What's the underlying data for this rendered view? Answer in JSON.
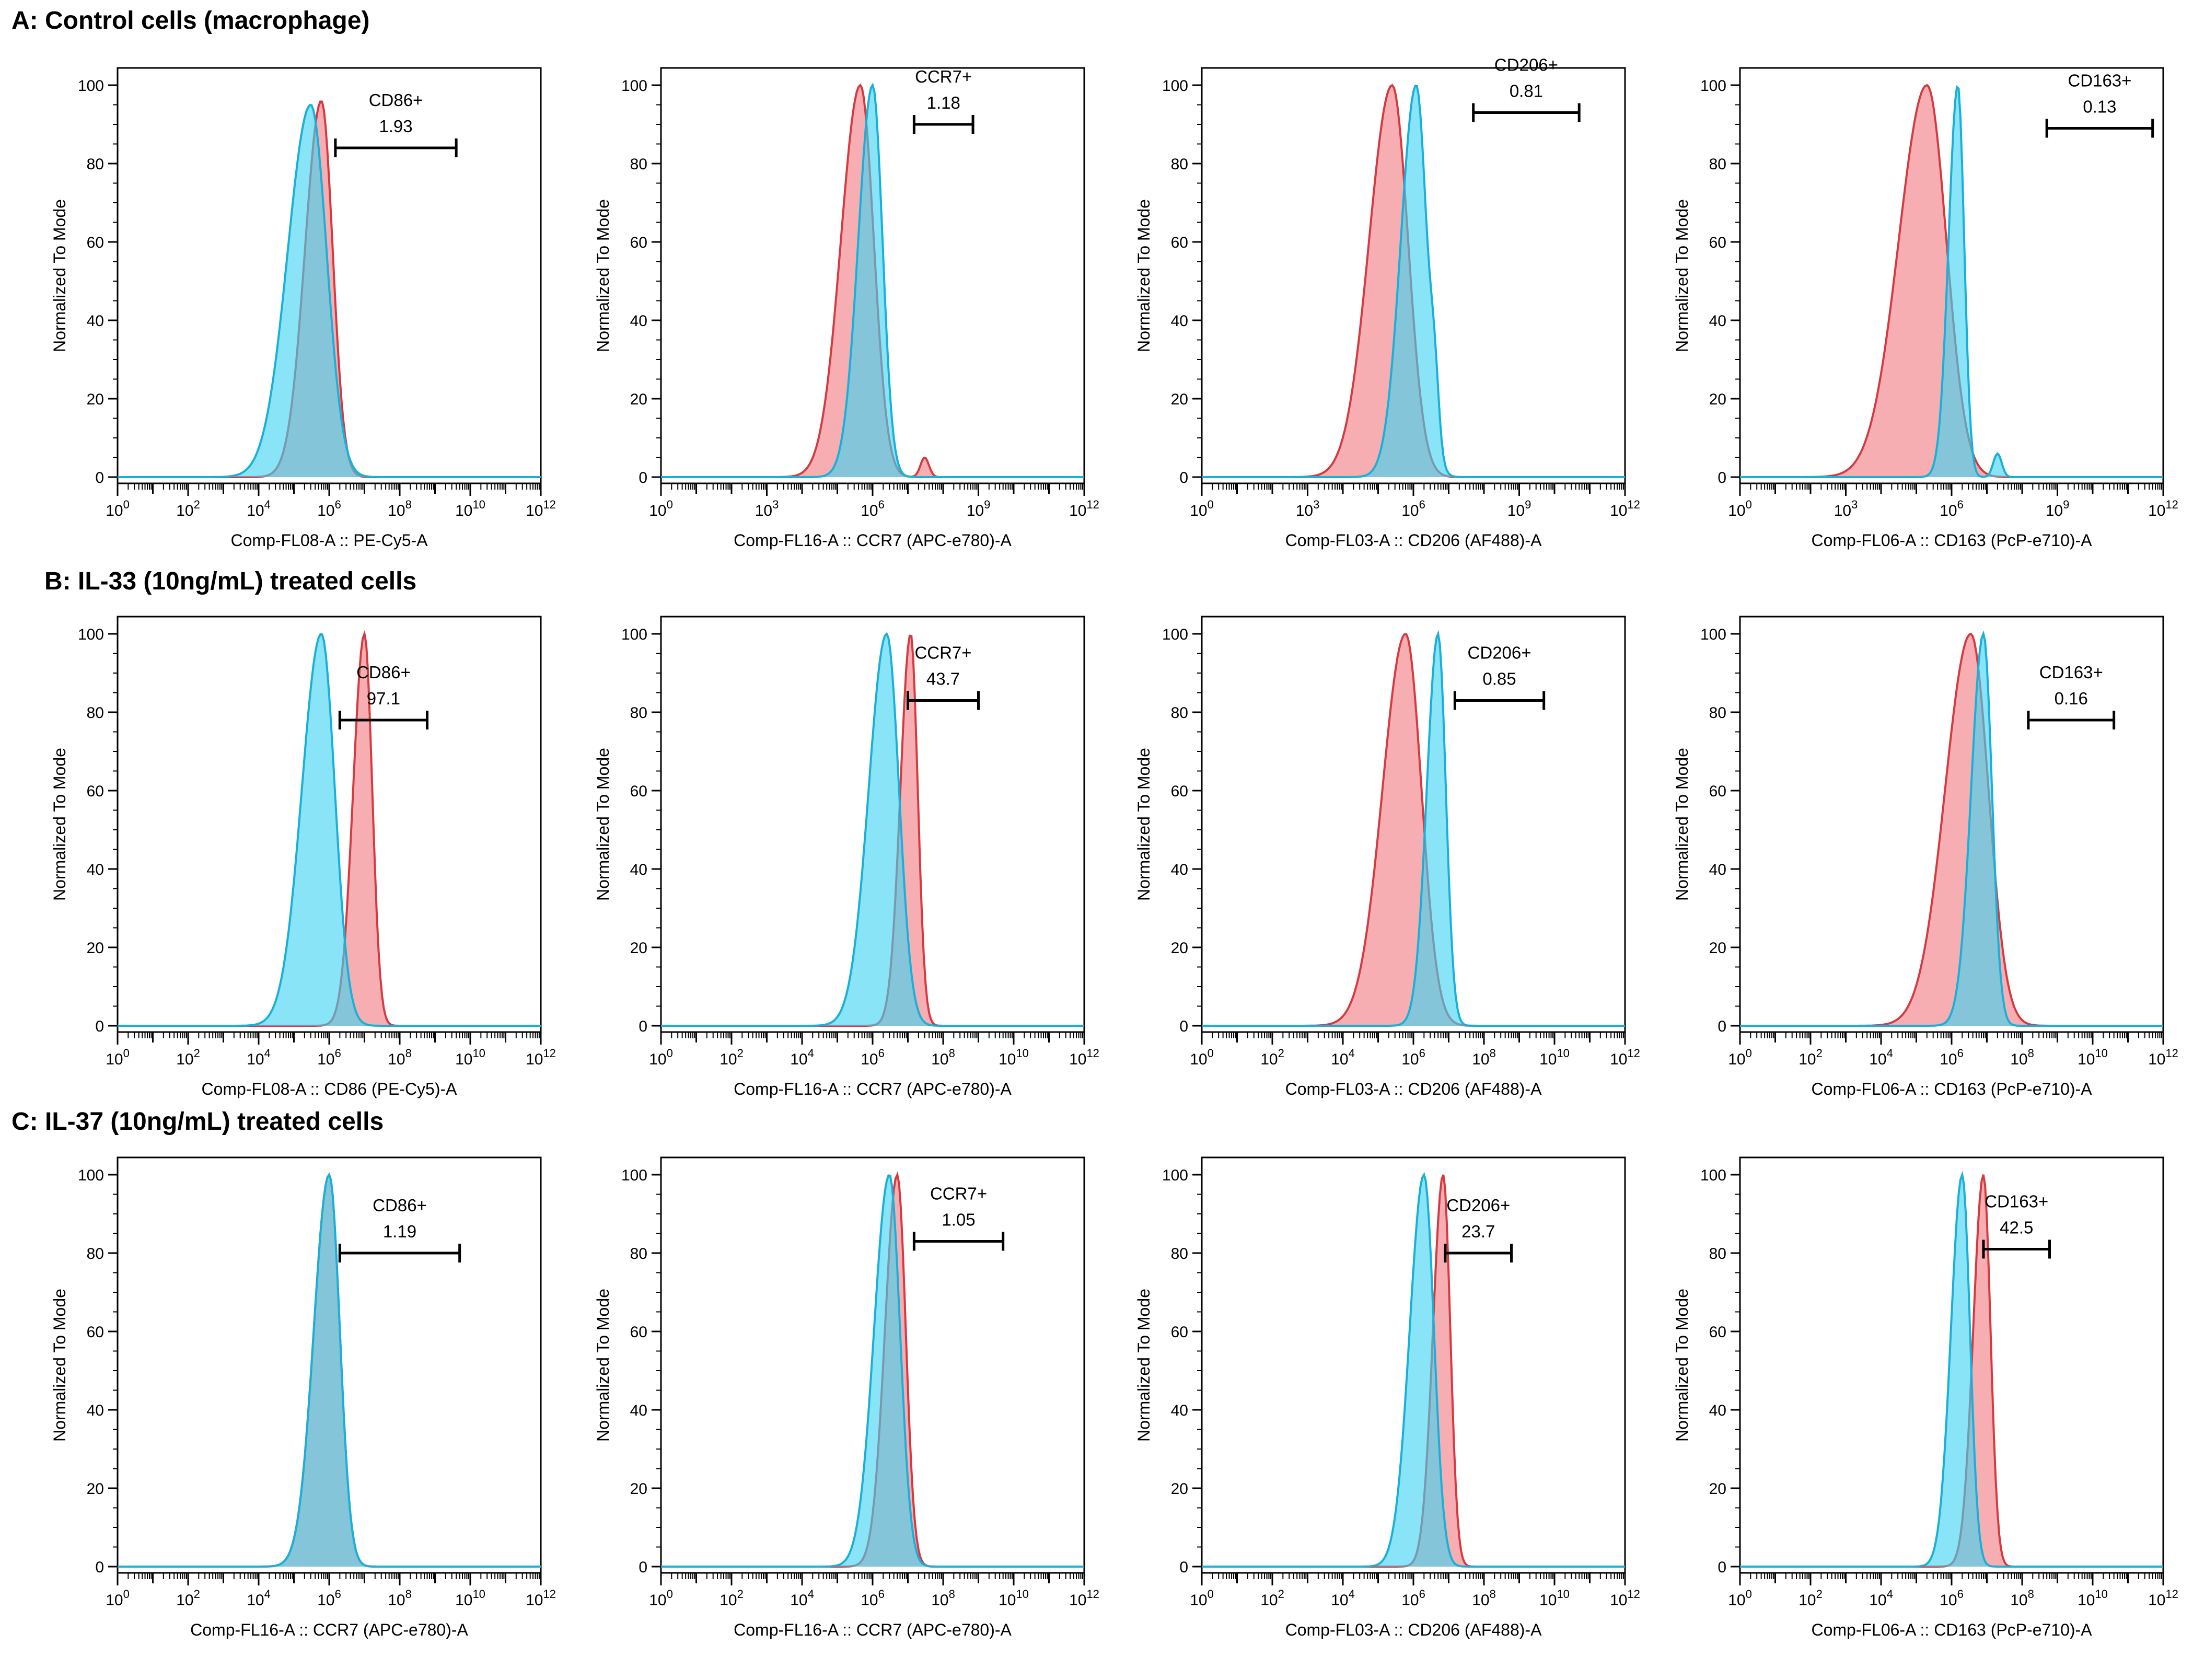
{
  "section_titles": [
    "A: Control cells (macrophage)",
    "B: IL-33 (10ng/mL) treated cells",
    "C: IL-37 (10ng/mL) treated cells"
  ],
  "colors": {
    "isotype_fill": "#3fd3f0",
    "isotype_line": "#19b0d8",
    "stained_fill": "#f07c82",
    "stained_line": "#d63a40",
    "overlap_fill": "#6d8fa6"
  },
  "chart_data": [
    {
      "type": "area",
      "row": 0,
      "col": 0,
      "ylabel": "Normalized To Mode",
      "xlabel": "Comp-FL08-A :: PE-Cy5-A",
      "gate_label": "CD86+",
      "gate_value": "1.93",
      "xscale": "log",
      "xlim": [
        1,
        1000000000000.0
      ],
      "ylim": [
        0,
        100
      ],
      "yticks": [
        0,
        20,
        40,
        60,
        80,
        100
      ],
      "xtick_labels": [
        "10^0",
        "10^2",
        "10^4",
        "10^6",
        "10^8",
        "10^10",
        "10^12"
      ],
      "gate_range": [
        1500000.0,
        4000000000.0
      ],
      "gate_y": 84,
      "series": [
        {
          "role": "isotype",
          "peak": 300000.0,
          "height": 95,
          "width": 0.45
        },
        {
          "role": "stained",
          "peak": 600000.0,
          "height": 96,
          "width": 0.32
        }
      ]
    },
    {
      "type": "area",
      "row": 0,
      "col": 1,
      "ylabel": "Normalized To Mode",
      "xlabel": "Comp-FL16-A :: CCR7 (APC-e780)-A",
      "gate_label": "CCR7+",
      "gate_value": "1.18",
      "xscale": "log",
      "xlim": [
        1,
        1000000000000.0
      ],
      "ylim": [
        0,
        100
      ],
      "yticks": [
        0,
        20,
        40,
        60,
        80,
        100
      ],
      "xtick_labels": [
        "10^0",
        "10^3",
        "10^6",
        "10^9",
        "10^12"
      ],
      "gate_range": [
        15000000.0,
        700000000.0
      ],
      "gate_y": 90,
      "series": [
        {
          "role": "isotype",
          "peak": 1000000.0,
          "height": 100,
          "width": 0.28
        },
        {
          "role": "stained",
          "peak": 450000.0,
          "height": 100,
          "width": 0.38,
          "bump": [
            30000000.0,
            5
          ]
        }
      ]
    },
    {
      "type": "area",
      "row": 0,
      "col": 2,
      "ylabel": "Normalized To Mode",
      "xlabel": "Comp-FL03-A :: CD206 (AF488)-A",
      "gate_label": "CD206+",
      "gate_value": "0.81",
      "xscale": "log",
      "xlim": [
        1,
        1000000000000.0
      ],
      "ylim": [
        0,
        100
      ],
      "yticks": [
        0,
        20,
        40,
        60,
        80,
        100
      ],
      "xtick_labels": [
        "10^0",
        "10^3",
        "10^6",
        "10^9",
        "10^12"
      ],
      "gate_range": [
        50000000.0,
        50000000000.0
      ],
      "gate_y": 93,
      "series": [
        {
          "role": "isotype",
          "peak": 1200000.0,
          "height": 100,
          "width": 0.3,
          "bump": [
            4000000.0,
            15
          ]
        },
        {
          "role": "stained",
          "peak": 250000.0,
          "height": 100,
          "width": 0.45
        }
      ]
    },
    {
      "type": "area",
      "row": 0,
      "col": 3,
      "ylabel": "Normalized To Mode",
      "xlabel": "Comp-FL06-A :: CD163 (PcP-e710)-A",
      "gate_label": "CD163+",
      "gate_value": "0.13",
      "xscale": "log",
      "xlim": [
        1,
        1000000000000.0
      ],
      "ylim": [
        0,
        100
      ],
      "yticks": [
        0,
        20,
        40,
        60,
        80,
        100
      ],
      "xtick_labels": [
        "10^0",
        "10^3",
        "10^6",
        "10^9",
        "10^12"
      ],
      "gate_range": [
        500000000.0,
        500000000000.0
      ],
      "gate_y": 89,
      "series": [
        {
          "role": "isotype",
          "peak": 1500000.0,
          "height": 100,
          "width": 0.18,
          "bump": [
            20000000.0,
            6
          ]
        },
        {
          "role": "stained",
          "peak": 200000.0,
          "height": 100,
          "width": 0.55
        }
      ]
    },
    {
      "type": "area",
      "row": 1,
      "col": 0,
      "ylabel": "Normalized To Mode",
      "xlabel": "Comp-FL08-A :: CD86 (PE-Cy5)-A",
      "gate_label": "CD86+",
      "gate_value": "97.1",
      "xscale": "log",
      "xlim": [
        1,
        1000000000000.0
      ],
      "ylim": [
        0,
        100
      ],
      "yticks": [
        0,
        20,
        40,
        60,
        80,
        100
      ],
      "xtick_labels": [
        "10^0",
        "10^2",
        "10^4",
        "10^6",
        "10^8",
        "10^10",
        "10^12"
      ],
      "gate_range": [
        2000000.0,
        600000000.0
      ],
      "gate_y": 78,
      "series": [
        {
          "role": "isotype",
          "peak": 600000.0,
          "height": 100,
          "width": 0.38
        },
        {
          "role": "stained",
          "peak": 10000000.0,
          "height": 100,
          "width": 0.22
        }
      ]
    },
    {
      "type": "area",
      "row": 1,
      "col": 1,
      "ylabel": "Normalized To Mode",
      "xlabel": "Comp-FL16-A :: CCR7 (APC-e780)-A",
      "gate_label": "CCR7+",
      "gate_value": "43.7",
      "xscale": "log",
      "xlim": [
        1,
        1000000000000.0
      ],
      "ylim": [
        0,
        100
      ],
      "yticks": [
        0,
        20,
        40,
        60,
        80,
        100
      ],
      "xtick_labels": [
        "10^0",
        "10^2",
        "10^4",
        "10^6",
        "10^8",
        "10^10",
        "10^12"
      ],
      "gate_range": [
        10000000.0,
        1000000000.0
      ],
      "gate_y": 83,
      "series": [
        {
          "role": "isotype",
          "peak": 2500000.0,
          "height": 100,
          "width": 0.35
        },
        {
          "role": "stained",
          "peak": 12000000.0,
          "height": 100,
          "width": 0.2
        }
      ]
    },
    {
      "type": "area",
      "row": 1,
      "col": 2,
      "ylabel": "Normalized To Mode",
      "xlabel": "Comp-FL03-A :: CD206 (AF488)-A",
      "gate_label": "CD206+",
      "gate_value": "0.85",
      "xscale": "log",
      "xlim": [
        1,
        1000000000000.0
      ],
      "ylim": [
        0,
        100
      ],
      "yticks": [
        0,
        20,
        40,
        60,
        80,
        100
      ],
      "xtick_labels": [
        "10^0",
        "10^2",
        "10^4",
        "10^6",
        "10^8",
        "10^10",
        "10^12"
      ],
      "gate_range": [
        15000000.0,
        5000000000.0
      ],
      "gate_y": 83,
      "series": [
        {
          "role": "isotype",
          "peak": 5000000.0,
          "height": 100,
          "width": 0.22
        },
        {
          "role": "stained",
          "peak": 600000.0,
          "height": 100,
          "width": 0.45
        }
      ]
    },
    {
      "type": "area",
      "row": 1,
      "col": 3,
      "ylabel": "Normalized To Mode",
      "xlabel": "Comp-FL06-A :: CD163 (PcP-e710)-A",
      "gate_label": "CD163+",
      "gate_value": "0.16",
      "xscale": "log",
      "xlim": [
        1,
        1000000000000.0
      ],
      "ylim": [
        0,
        100
      ],
      "yticks": [
        0,
        20,
        40,
        60,
        80,
        100
      ],
      "xtick_labels": [
        "10^0",
        "10^2",
        "10^4",
        "10^6",
        "10^8",
        "10^10",
        "10^12"
      ],
      "gate_range": [
        150000000.0,
        40000000000.0
      ],
      "gate_y": 78,
      "series": [
        {
          "role": "isotype",
          "peak": 8000000.0,
          "height": 100,
          "width": 0.24
        },
        {
          "role": "stained",
          "peak": 3500000.0,
          "height": 100,
          "width": 0.5
        }
      ]
    },
    {
      "type": "area",
      "row": 2,
      "col": 0,
      "ylabel": "Normalized To Mode",
      "xlabel": "Comp-FL16-A :: CCR7 (APC-e780)-A",
      "gate_label": "CD86+",
      "gate_value": "1.19",
      "xscale": "log",
      "xlim": [
        1,
        1000000000000.0
      ],
      "ylim": [
        0,
        100
      ],
      "yticks": [
        0,
        20,
        40,
        60,
        80,
        100
      ],
      "xtick_labels": [
        "10^0",
        "10^2",
        "10^4",
        "10^6",
        "10^8",
        "10^10",
        "10^12"
      ],
      "gate_range": [
        2000000.0,
        5000000000.0
      ],
      "gate_y": 80,
      "series": [
        {
          "role": "isotype",
          "peak": 1000000.0,
          "height": 100,
          "width": 0.3
        },
        {
          "role": "stained",
          "peak": 1000000.0,
          "height": 100,
          "width": 0.3
        }
      ]
    },
    {
      "type": "area",
      "row": 2,
      "col": 1,
      "ylabel": "Normalized To Mode",
      "xlabel": "Comp-FL16-A :: CCR7 (APC-e780)-A",
      "gate_label": "CCR7+",
      "gate_value": "1.05",
      "xscale": "log",
      "xlim": [
        1,
        1000000000000.0
      ],
      "ylim": [
        0,
        100
      ],
      "yticks": [
        0,
        20,
        40,
        60,
        80,
        100
      ],
      "xtick_labels": [
        "10^0",
        "10^2",
        "10^4",
        "10^6",
        "10^8",
        "10^10",
        "10^12"
      ],
      "gate_range": [
        15000000.0,
        5000000000.0
      ],
      "gate_y": 83,
      "series": [
        {
          "role": "isotype",
          "peak": 3000000.0,
          "height": 100,
          "width": 0.3
        },
        {
          "role": "stained",
          "peak": 5000000.0,
          "height": 100,
          "width": 0.24
        }
      ]
    },
    {
      "type": "area",
      "row": 2,
      "col": 2,
      "ylabel": "Normalized To Mode",
      "xlabel": "Comp-FL03-A :: CD206 (AF488)-A",
      "gate_label": "CD206+",
      "gate_value": "23.7",
      "xscale": "log",
      "xlim": [
        1,
        1000000000000.0
      ],
      "ylim": [
        0,
        100
      ],
      "yticks": [
        0,
        20,
        40,
        60,
        80,
        100
      ],
      "xtick_labels": [
        "10^0",
        "10^2",
        "10^4",
        "10^6",
        "10^8",
        "10^10",
        "10^12"
      ],
      "gate_range": [
        8000000.0,
        600000000.0
      ],
      "gate_y": 80,
      "series": [
        {
          "role": "isotype",
          "peak": 2000000.0,
          "height": 100,
          "width": 0.28
        },
        {
          "role": "stained",
          "peak": 7000000.0,
          "height": 100,
          "width": 0.2
        }
      ]
    },
    {
      "type": "area",
      "row": 2,
      "col": 3,
      "ylabel": "Normalized To Mode",
      "xlabel": "Comp-FL06-A :: CD163 (PcP-e710)-A",
      "gate_label": "CD163+",
      "gate_value": "42.5",
      "xscale": "log",
      "xlim": [
        1,
        1000000000000.0
      ],
      "ylim": [
        0,
        100
      ],
      "yticks": [
        0,
        20,
        40,
        60,
        80,
        100
      ],
      "xtick_labels": [
        "10^0",
        "10^2",
        "10^4",
        "10^6",
        "10^8",
        "10^10",
        "10^12"
      ],
      "gate_range": [
        8000000.0,
        600000000.0
      ],
      "gate_y": 81,
      "series": [
        {
          "role": "isotype",
          "peak": 2000000.0,
          "height": 100,
          "width": 0.22
        },
        {
          "role": "stained",
          "peak": 8000000.0,
          "height": 100,
          "width": 0.2
        }
      ]
    }
  ]
}
